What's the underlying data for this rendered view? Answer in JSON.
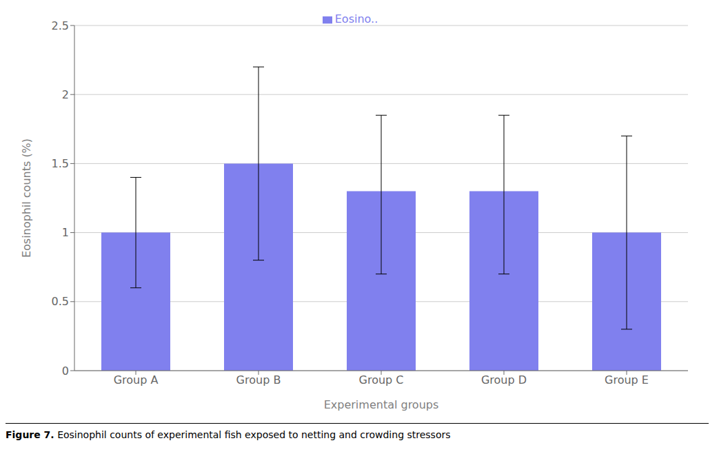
{
  "chart_data": {
    "type": "bar",
    "categories": [
      "Group A",
      "Group B",
      "Group C",
      "Group D",
      "Group E"
    ],
    "series": [
      {
        "name": "Eosino..",
        "color": "#8080EE",
        "values": [
          1.0,
          1.5,
          1.3,
          1.3,
          1.0
        ],
        "error_lower": [
          0.4,
          0.7,
          0.6,
          0.6,
          0.7
        ],
        "error_upper": [
          0.4,
          0.7,
          0.55,
          0.55,
          0.7
        ]
      }
    ],
    "xlabel": "Experimental groups",
    "ylabel": "Eosinophil counts (%)",
    "ylim": [
      0,
      2.5
    ],
    "yticks": [
      0,
      0.5,
      1,
      1.5,
      2,
      2.5
    ],
    "grid": true,
    "legend": "top",
    "caption_label": "Figure 7.",
    "caption": "Eosinophil counts of experimental fish exposed to netting and crowding stressors"
  }
}
